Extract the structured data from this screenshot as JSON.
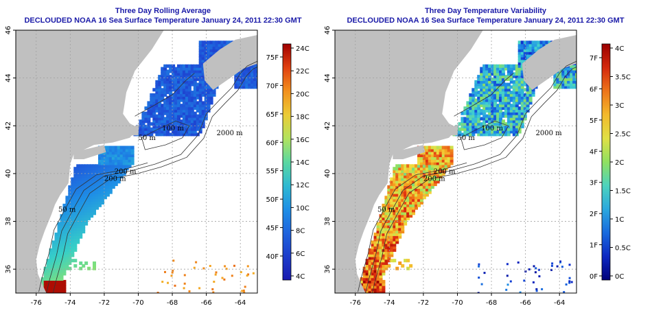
{
  "panels": [
    {
      "title_line1": "Three Day Rolling Average",
      "title_line2": "DECLOUDED NOAA 16 Sea Surface Temperature January 24, 2011 22:30 GMT",
      "mode": "avg",
      "colorbar": {
        "celsius_labels": [
          "4C",
          "6C",
          "8C",
          "10C",
          "12C",
          "14C",
          "16C",
          "18C",
          "20C",
          "22C",
          "24C"
        ],
        "fahrenheit_labels": [
          "40F",
          "45F",
          "50F",
          "55F",
          "60F",
          "65F",
          "70F",
          "75F"
        ]
      }
    },
    {
      "title_line1": "Three Day Temperature Variability",
      "title_line2": "DECLOUDED NOAA 16 Sea Surface Temperature January 24, 2011 22:30 GMT",
      "mode": "var",
      "colorbar": {
        "celsius_labels": [
          "0C",
          "0.5C",
          "1C",
          "1.5C",
          "2C",
          "2.5C",
          "3C",
          "3.5C",
          "4C"
        ],
        "fahrenheit_labels": [
          "0F",
          "1F",
          "2F",
          "3F",
          "4F",
          "5F",
          "6F",
          "7F"
        ]
      }
    }
  ],
  "map": {
    "lon_ticks": [
      "-76",
      "-74",
      "-72",
      "-70",
      "-68",
      "-66",
      "-64"
    ],
    "lat_ticks": [
      "36",
      "38",
      "40",
      "42",
      "44",
      "46"
    ],
    "lon_range": [
      -77.2,
      -63.0
    ],
    "lat_range": [
      35.0,
      46.0
    ],
    "contour_labels": [
      "100 m",
      "200 m",
      "2000 m",
      "50 m",
      "200 m",
      "50 m"
    ],
    "land_color": "#c0c0c0",
    "ocean_color": "#ffffff"
  }
}
